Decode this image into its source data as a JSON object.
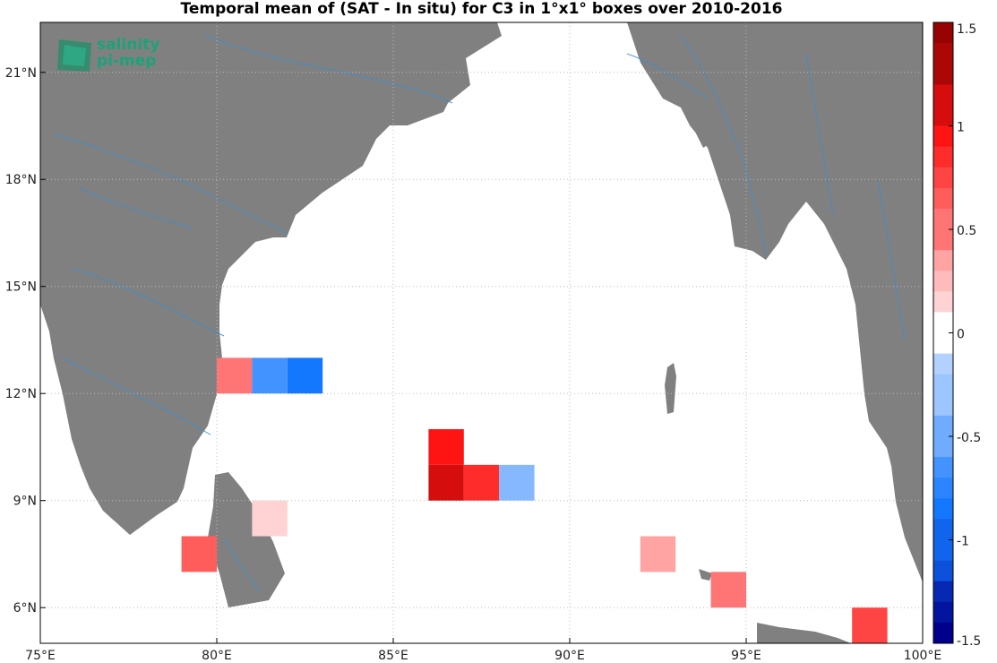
{
  "title": "Temporal mean of (SAT - In situ) for C3 in 1°x1° boxes over 2010-2016",
  "logo": {
    "line1": "salinity",
    "line2": "pi-mep"
  },
  "map": {
    "lon_range": [
      75,
      100
    ],
    "lat_range": [
      5,
      22.4
    ],
    "x_ticks": [
      {
        "value": 75,
        "label": "75°E"
      },
      {
        "value": 80,
        "label": "80°E"
      },
      {
        "value": 85,
        "label": "85°E"
      },
      {
        "value": 90,
        "label": "90°E"
      },
      {
        "value": 95,
        "label": "95°E"
      },
      {
        "value": 100,
        "label": "100°E"
      }
    ],
    "y_ticks": [
      {
        "value": 6,
        "label": "6°N"
      },
      {
        "value": 9,
        "label": "9°N"
      },
      {
        "value": 12,
        "label": "12°N"
      },
      {
        "value": 15,
        "label": "15°N"
      },
      {
        "value": 18,
        "label": "18°N"
      },
      {
        "value": 21,
        "label": "21°N"
      }
    ],
    "land_color": "#808080",
    "river_color": "#3a8fd0"
  },
  "chart_data": {
    "type": "heatmap",
    "title": "Temporal mean of (SAT - In situ) for C3 in 1°x1° boxes over 2010-2016",
    "grid": true,
    "boxes": [
      {
        "lon": 80,
        "lat": 12,
        "value": 0.45
      },
      {
        "lon": 81,
        "lat": 12,
        "value": -0.75
      },
      {
        "lon": 82,
        "lat": 12,
        "value": -0.9
      },
      {
        "lon": 86,
        "lat": 10,
        "value": 0.9
      },
      {
        "lon": 86,
        "lat": 9,
        "value": 1.1
      },
      {
        "lon": 87,
        "lat": 9,
        "value": 0.8
      },
      {
        "lon": 88,
        "lat": 9,
        "value": -0.45
      },
      {
        "lon": 81,
        "lat": 8,
        "value": 0.1
      },
      {
        "lon": 79,
        "lat": 7,
        "value": 0.55
      },
      {
        "lon": 92,
        "lat": 7,
        "value": 0.35
      },
      {
        "lon": 94,
        "lat": 6,
        "value": 0.5
      },
      {
        "lon": 98,
        "lat": 5,
        "value": 0.65
      }
    ],
    "colorbar": {
      "range": [
        -1.5,
        1.5
      ],
      "step": 0.1,
      "ticks": [
        {
          "value": 1.5,
          "label": "1.5"
        },
        {
          "value": 1,
          "label": "1"
        },
        {
          "value": 0.5,
          "label": "0.5"
        },
        {
          "value": 0,
          "label": "0"
        },
        {
          "value": -0.5,
          "label": "-0.5"
        },
        {
          "value": -1,
          "label": "-1"
        },
        {
          "value": -1.5,
          "label": "-1.5"
        }
      ]
    }
  }
}
